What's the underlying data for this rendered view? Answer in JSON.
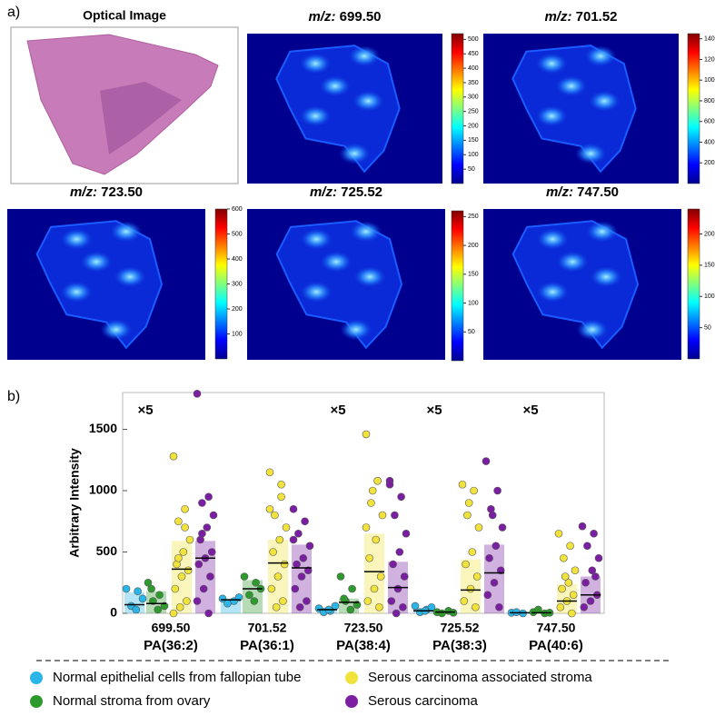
{
  "panel_labels": [
    "a)",
    "b)"
  ],
  "mz_label": "m/z:",
  "images": [
    {
      "title": "Optical Image"
    },
    {
      "mz": "699.50",
      "clim": [
        0,
        520
      ],
      "colorbar_ticks": [
        50,
        100,
        150,
        200,
        250,
        300,
        350,
        400,
        450,
        500
      ]
    },
    {
      "mz": "701.52",
      "clim": [
        0,
        1450
      ],
      "colorbar_ticks": [
        200,
        400,
        600,
        800,
        1000,
        1200,
        1400
      ]
    },
    {
      "mz": "723.50",
      "clim": [
        0,
        600
      ],
      "colorbar_ticks": [
        100,
        200,
        300,
        400,
        500,
        600
      ]
    },
    {
      "mz": "725.52",
      "clim": [
        0,
        260
      ],
      "colorbar_ticks": [
        50,
        100,
        150,
        200,
        250
      ]
    },
    {
      "mz": "747.50",
      "clim": [
        0,
        240
      ],
      "colorbar_ticks": [
        50,
        100,
        150,
        200
      ]
    }
  ],
  "chart_data": {
    "type": "strip",
    "y_label": "Arbitrary Intensity",
    "categories": [
      "699.50",
      "701.52",
      "723.50",
      "725.52",
      "747.50"
    ],
    "lipids": [
      "PA(36:2)",
      "PA(36:1)",
      "PA(38:4)",
      "PA(38:3)",
      "PA(40:6)"
    ],
    "multipliers": [
      "×5",
      null,
      "×5",
      "×5",
      "×5"
    ],
    "ylim": [
      0,
      1800
    ],
    "yticks": [
      0,
      500,
      1000,
      1500
    ],
    "series": [
      {
        "name": "Normal epithelial cells from fallopian tube",
        "color": "#29b5e8",
        "values": [
          170,
          120,
          50,
          40,
          10
        ],
        "medians": [
          70,
          110,
          30,
          20,
          5
        ],
        "points": [
          [
            200,
            180,
            60,
            120,
            30
          ],
          [
            120,
            100,
            80,
            130
          ],
          [
            40,
            20,
            10,
            60,
            30
          ],
          [
            60,
            30,
            10,
            50,
            20
          ],
          [
            5,
            0,
            10
          ]
        ]
      },
      {
        "name": "Normal stroma from ovary",
        "color": "#2e9a2e",
        "values": [
          180,
          270,
          120,
          10,
          10
        ],
        "medians": [
          80,
          200,
          90,
          10,
          5
        ],
        "points": [
          [
            250,
            150,
            100,
            60,
            30,
            200
          ],
          [
            300,
            250,
            150,
            200,
            100
          ],
          [
            300,
            200,
            100,
            70,
            30,
            120
          ],
          [
            10,
            20,
            0,
            5
          ],
          [
            10,
            0,
            30,
            5
          ]
        ]
      },
      {
        "name": "Serous carcinoma associated stroma",
        "color": "#f2e23c",
        "values": [
          590,
          600,
          650,
          440,
          240
        ],
        "medians": [
          360,
          410,
          340,
          190,
          100
        ],
        "points": [
          [
            1280,
            850,
            750,
            600,
            500,
            400,
            350,
            300,
            200,
            100,
            50,
            0,
            700,
            450
          ],
          [
            1150,
            950,
            800,
            700,
            600,
            500,
            400,
            300,
            200,
            100,
            50,
            850,
            1050
          ],
          [
            1460,
            1080,
            900,
            800,
            600,
            450,
            300,
            200,
            100,
            50,
            1000,
            700
          ],
          [
            1050,
            1000,
            800,
            700,
            500,
            400,
            300,
            200,
            100,
            50,
            900
          ],
          [
            650,
            550,
            450,
            350,
            250,
            200,
            150,
            100,
            50,
            0,
            300
          ]
        ]
      },
      {
        "name": "Serous carcinoma",
        "color": "#7b1fa2",
        "values": [
          590,
          560,
          420,
          560,
          300
        ],
        "medians": [
          450,
          370,
          210,
          330,
          150
        ],
        "points": [
          [
            1790,
            950,
            900,
            800,
            700,
            600,
            500,
            450,
            400,
            300,
            200,
            100,
            0,
            650
          ],
          [
            850,
            750,
            650,
            550,
            450,
            400,
            350,
            300,
            200,
            100,
            50,
            600
          ],
          [
            1080,
            950,
            800,
            650,
            500,
            400,
            300,
            200,
            100,
            50,
            0,
            1050
          ],
          [
            1240,
            1000,
            850,
            700,
            550,
            450,
            350,
            250,
            150,
            50,
            800
          ],
          [
            710,
            650,
            550,
            450,
            350,
            250,
            150,
            100,
            50,
            300
          ]
        ]
      }
    ]
  }
}
